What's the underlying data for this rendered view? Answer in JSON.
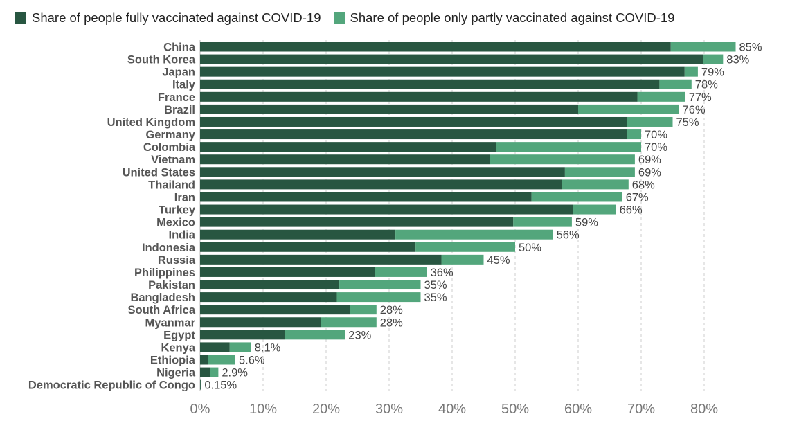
{
  "legend": {
    "full": "Share of people fully vaccinated against COVID-19",
    "partial": "Share of people only partly vaccinated against COVID-19"
  },
  "colors": {
    "full": "#285641",
    "partial": "#53a67c",
    "grid": "#cccccc",
    "axis_text": "#777777",
    "label_text": "#555555",
    "value_text": "#444444"
  },
  "chart_data": {
    "type": "bar",
    "orientation": "horizontal",
    "stacked": true,
    "categories": [
      "China",
      "South Korea",
      "Japan",
      "Italy",
      "France",
      "Brazil",
      "United Kingdom",
      "Germany",
      "Colombia",
      "Vietnam",
      "United States",
      "Thailand",
      "Iran",
      "Turkey",
      "Mexico",
      "India",
      "Indonesia",
      "Russia",
      "Philippines",
      "Pakistan",
      "Bangladesh",
      "South Africa",
      "Myanmar",
      "Egypt",
      "Kenya",
      "Ethiopia",
      "Nigeria",
      "Democratic Republic of Congo"
    ],
    "series": [
      {
        "name": "Share of people fully vaccinated against COVID-19",
        "values": [
          74.7,
          79.8,
          76.9,
          72.9,
          69.4,
          60.0,
          67.8,
          67.8,
          47.0,
          46.0,
          57.9,
          57.4,
          52.6,
          59.2,
          49.7,
          31.0,
          34.2,
          38.3,
          27.8,
          22.1,
          21.7,
          23.8,
          19.2,
          13.5,
          4.7,
          1.3,
          1.6,
          0.1
        ]
      },
      {
        "name": "Share of people only partly vaccinated against COVID-19",
        "values": [
          10.3,
          3.2,
          2.1,
          5.1,
          7.6,
          16.0,
          7.2,
          2.2,
          23.0,
          23.0,
          11.1,
          10.6,
          14.4,
          6.8,
          9.3,
          25.0,
          15.8,
          6.7,
          8.2,
          12.9,
          13.3,
          4.2,
          8.8,
          9.5,
          3.4,
          4.3,
          1.3,
          0.05
        ]
      }
    ],
    "total_labels": [
      "85%",
      "83%",
      "79%",
      "78%",
      "77%",
      "76%",
      "75%",
      "70%",
      "70%",
      "69%",
      "69%",
      "68%",
      "67%",
      "66%",
      "59%",
      "56%",
      "50%",
      "45%",
      "36%",
      "35%",
      "35%",
      "28%",
      "28%",
      "23%",
      "8.1%",
      "5.6%",
      "2.9%",
      "0.15%"
    ],
    "x_ticks": [
      0,
      10,
      20,
      30,
      40,
      50,
      60,
      70,
      80
    ],
    "x_tick_labels": [
      "0%",
      "10%",
      "20%",
      "30%",
      "40%",
      "50%",
      "60%",
      "70%",
      "80%"
    ],
    "xlim": [
      0,
      85
    ],
    "grid": "vertical dashed",
    "legend_position": "top-left"
  }
}
